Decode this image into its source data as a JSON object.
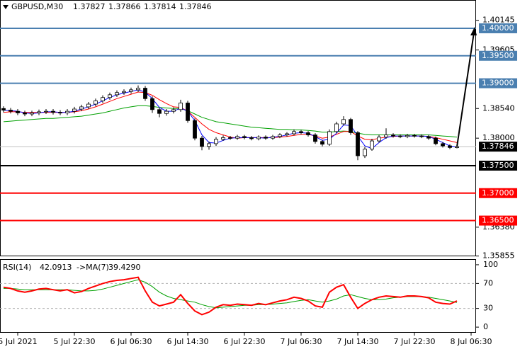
{
  "chart_data": [
    {
      "type": "candlestick",
      "title": "GBPUSD,M30",
      "xlim": [
        -0.5,
        66.7
      ],
      "xticks": [
        {
          "value": 2,
          "label": "5 Jul 2021"
        },
        {
          "value": 10,
          "label": "5 Jul 22:30"
        },
        {
          "value": 18,
          "label": "6 Jul 06:30"
        },
        {
          "value": 26,
          "label": "6 Jul 14:30"
        },
        {
          "value": 34,
          "label": "6 Jul 22:30"
        },
        {
          "value": 42,
          "label": "7 Jul 06:30"
        },
        {
          "value": 50,
          "label": "7 Jul 14:30"
        },
        {
          "value": 58,
          "label": "7 Jul 22:30"
        },
        {
          "value": 66,
          "label": "8 Jul 06:30"
        }
      ],
      "ylim": [
        1.3585,
        1.40515
      ],
      "yticks": [
        {
          "value": 1.40145,
          "label": "1.40145"
        },
        {
          "value": 1.39605,
          "label": "1.39605"
        },
        {
          "value": 1.3854,
          "label": "1.38540"
        },
        {
          "value": 1.38,
          "label": "1.38000"
        },
        {
          "value": 1.3638,
          "label": "1.36380"
        },
        {
          "value": 1.35855,
          "label": "1.35855"
        }
      ],
      "open": [
        1.3854,
        1.3851,
        1.3849,
        1.3846,
        1.3844,
        1.3846,
        1.3848,
        1.3849,
        1.3847,
        1.3846,
        1.3849,
        1.3853,
        1.3857,
        1.3862,
        1.3868,
        1.3874,
        1.3879,
        1.3883,
        1.3885,
        1.3888,
        1.3891,
        1.3872,
        1.3852,
        1.3845,
        1.3849,
        1.3852,
        1.3864,
        1.3832,
        1.38,
        1.3785,
        1.379,
        1.3798,
        1.3801,
        1.38,
        1.3803,
        1.3801,
        1.3799,
        1.3802,
        1.38,
        1.3803,
        1.3806,
        1.3808,
        1.3812,
        1.381,
        1.3806,
        1.3794,
        1.3789,
        1.3812,
        1.3826,
        1.3834,
        1.381,
        1.3768,
        1.378,
        1.3795,
        1.3802,
        1.3806,
        1.3804,
        1.3803,
        1.3805,
        1.3804,
        1.3803,
        1.38,
        1.379,
        1.3786,
        1.37827
      ],
      "high": [
        1.3858,
        1.3855,
        1.3853,
        1.385,
        1.385,
        1.3852,
        1.3853,
        1.3853,
        1.3851,
        1.3853,
        1.3857,
        1.3861,
        1.3866,
        1.3872,
        1.3878,
        1.3883,
        1.3887,
        1.3889,
        1.3892,
        1.3896,
        1.3895,
        1.3876,
        1.3856,
        1.3853,
        1.3856,
        1.387,
        1.3868,
        1.3836,
        1.3804,
        1.3794,
        1.3802,
        1.3805,
        1.3804,
        1.3806,
        1.3806,
        1.3804,
        1.3805,
        1.3805,
        1.3806,
        1.3809,
        1.3811,
        1.3816,
        1.3815,
        1.3813,
        1.3809,
        1.3797,
        1.3816,
        1.383,
        1.384,
        1.3837,
        1.3813,
        1.3784,
        1.3799,
        1.3806,
        1.3818,
        1.3809,
        1.3807,
        1.3808,
        1.3808,
        1.3807,
        1.3806,
        1.3803,
        1.3793,
        1.3789,
        1.37866
      ],
      "low": [
        1.3847,
        1.3845,
        1.3842,
        1.384,
        1.384,
        1.3842,
        1.3844,
        1.3843,
        1.3842,
        1.3842,
        1.3845,
        1.3849,
        1.3853,
        1.3858,
        1.3864,
        1.387,
        1.3875,
        1.3879,
        1.3881,
        1.3884,
        1.3868,
        1.3846,
        1.3838,
        1.3841,
        1.3845,
        1.3848,
        1.3828,
        1.3796,
        1.3778,
        1.3779,
        1.3786,
        1.3795,
        1.3797,
        1.3797,
        1.3798,
        1.3796,
        1.3796,
        1.3797,
        1.3797,
        1.38,
        1.3803,
        1.3805,
        1.3807,
        1.3803,
        1.379,
        1.3785,
        1.3786,
        1.3809,
        1.3823,
        1.3806,
        1.376,
        1.3764,
        1.3777,
        1.3792,
        1.3799,
        1.3801,
        1.38,
        1.38,
        1.3801,
        1.38,
        1.3797,
        1.3787,
        1.3783,
        1.378,
        1.37814
      ],
      "close": [
        1.3851,
        1.3849,
        1.3846,
        1.3844,
        1.3846,
        1.3848,
        1.3849,
        1.3847,
        1.3846,
        1.3849,
        1.3853,
        1.3857,
        1.3862,
        1.3868,
        1.3874,
        1.3879,
        1.3883,
        1.3885,
        1.3888,
        1.3891,
        1.3872,
        1.3852,
        1.3845,
        1.3849,
        1.3852,
        1.3864,
        1.3832,
        1.38,
        1.3785,
        1.379,
        1.3798,
        1.3801,
        1.38,
        1.3803,
        1.3801,
        1.3799,
        1.3802,
        1.38,
        1.3803,
        1.3806,
        1.3808,
        1.3812,
        1.381,
        1.3806,
        1.3794,
        1.3789,
        1.3812,
        1.3826,
        1.3834,
        1.381,
        1.3768,
        1.378,
        1.3795,
        1.3802,
        1.3806,
        1.3804,
        1.3803,
        1.3805,
        1.3804,
        1.3803,
        1.38,
        1.379,
        1.3786,
        1.3783,
        1.37846
      ],
      "series": [
        {
          "color": "#00a000",
          "values": [
            1.383,
            1.3831,
            1.3832,
            1.3833,
            1.3834,
            1.3835,
            1.3836,
            1.3836,
            1.3837,
            1.3838,
            1.3839,
            1.384,
            1.3842,
            1.3844,
            1.3846,
            1.3849,
            1.3852,
            1.3855,
            1.3857,
            1.3859,
            1.3859,
            1.3858,
            1.3856,
            1.3855,
            1.3854,
            1.3854,
            1.385,
            1.3844,
            1.3838,
            1.3834,
            1.383,
            1.3828,
            1.3826,
            1.3824,
            1.3822,
            1.382,
            1.3819,
            1.3818,
            1.3817,
            1.3816,
            1.3816,
            1.3815,
            1.3815,
            1.3814,
            1.3813,
            1.3811,
            1.3811,
            1.3812,
            1.3813,
            1.3812,
            1.3809,
            1.3807,
            1.3806,
            1.3806,
            1.3806,
            1.3806,
            1.3806,
            1.3806,
            1.3806,
            1.3806,
            1.3806,
            1.3805,
            1.3804,
            1.3803,
            1.3802
          ]
        },
        {
          "color": "#ff0000",
          "values": [
            1.3847,
            1.3848,
            1.3848,
            1.3847,
            1.3847,
            1.3847,
            1.3847,
            1.3847,
            1.3847,
            1.3847,
            1.3848,
            1.385,
            1.3853,
            1.3857,
            1.3862,
            1.3867,
            1.3872,
            1.3876,
            1.388,
            1.3884,
            1.3883,
            1.3878,
            1.387,
            1.3863,
            1.3857,
            1.3856,
            1.3849,
            1.3838,
            1.3826,
            1.3816,
            1.381,
            1.3806,
            1.3802,
            1.38,
            1.3801,
            1.3801,
            1.3801,
            1.3801,
            1.3801,
            1.3802,
            1.3803,
            1.3805,
            1.3807,
            1.3807,
            1.3804,
            1.38,
            1.3802,
            1.3807,
            1.3812,
            1.3812,
            1.3804,
            1.3798,
            1.3797,
            1.38,
            1.3802,
            1.3803,
            1.3804,
            1.3804,
            1.3804,
            1.3804,
            1.3803,
            1.3801,
            1.3798,
            1.3795,
            1.3792
          ]
        },
        {
          "color": "#0000ff",
          "values": [
            1.3851,
            1.385,
            1.3849,
            1.3846,
            1.3845,
            1.3846,
            1.3848,
            1.3848,
            1.3847,
            1.3847,
            1.3849,
            1.3853,
            1.3857,
            1.3862,
            1.3868,
            1.3874,
            1.3879,
            1.3882,
            1.3885,
            1.3888,
            1.3884,
            1.3872,
            1.3856,
            1.3849,
            1.3849,
            1.3855,
            1.3849,
            1.3832,
            1.3806,
            1.3792,
            1.3791,
            1.3796,
            1.38,
            1.3801,
            1.3801,
            1.3801,
            1.3801,
            1.38,
            1.3802,
            1.3803,
            1.3806,
            1.3809,
            1.381,
            1.3809,
            1.3803,
            1.3796,
            1.3798,
            1.3809,
            1.3824,
            1.3823,
            1.3804,
            1.3786,
            1.3781,
            1.3792,
            1.3801,
            1.3804,
            1.3804,
            1.3804,
            1.3804,
            1.3804,
            1.3803,
            1.3798,
            1.3792,
            1.3786,
            1.3784
          ]
        }
      ],
      "levels": [
        {
          "value": 1.4,
          "label": "1.40000",
          "color": "#4a7fb0"
        },
        {
          "value": 1.395,
          "label": "1.39500",
          "color": "#4a7fb0"
        },
        {
          "value": 1.39,
          "label": "1.39000",
          "color": "#4a7fb0"
        },
        {
          "value": 1.375,
          "label": "1.37500",
          "color": "#000000"
        },
        {
          "value": 1.37,
          "label": "1.37000",
          "color": "#ff0000"
        },
        {
          "value": 1.365,
          "label": "1.36500",
          "color": "#ff0000"
        }
      ]
    },
    {
      "type": "line",
      "ylim": [
        -9,
        109
      ],
      "yticks": [
        100,
        70,
        30,
        0
      ],
      "grid": [
        70,
        30
      ],
      "series": [
        {
          "name": "RSI(14)",
          "color": "#ff0000",
          "values": [
            64,
            62,
            58,
            56,
            58,
            61,
            62,
            60,
            58,
            60,
            55,
            57,
            62,
            66,
            70,
            73,
            75,
            76,
            78,
            80,
            58,
            40,
            34,
            37,
            40,
            52,
            38,
            26,
            20,
            24,
            32,
            36,
            35,
            37,
            36,
            35,
            38,
            36,
            39,
            42,
            44,
            48,
            46,
            42,
            34,
            32,
            56,
            64,
            68,
            48,
            30,
            38,
            44,
            48,
            50,
            49,
            48,
            50,
            50,
            49,
            47,
            40,
            38,
            37,
            42.0913
          ]
        },
        {
          "name": "->MA(7)",
          "color": "#00a000",
          "value_label": "39.4290",
          "values": [
            62,
            62,
            61,
            60,
            60,
            60,
            60,
            60,
            60,
            60,
            59,
            58,
            58,
            59,
            61,
            64,
            67,
            70,
            73,
            76,
            72,
            65,
            56,
            50,
            46,
            44,
            42,
            40,
            36,
            33,
            31,
            32,
            33,
            34,
            35,
            35,
            36,
            36,
            37,
            38,
            39,
            41,
            43,
            44,
            42,
            40,
            42,
            45,
            50,
            52,
            49,
            46,
            44,
            44,
            45,
            47,
            48,
            49,
            49,
            49,
            48,
            46,
            44,
            42,
            39.429
          ]
        }
      ]
    }
  ]
}
